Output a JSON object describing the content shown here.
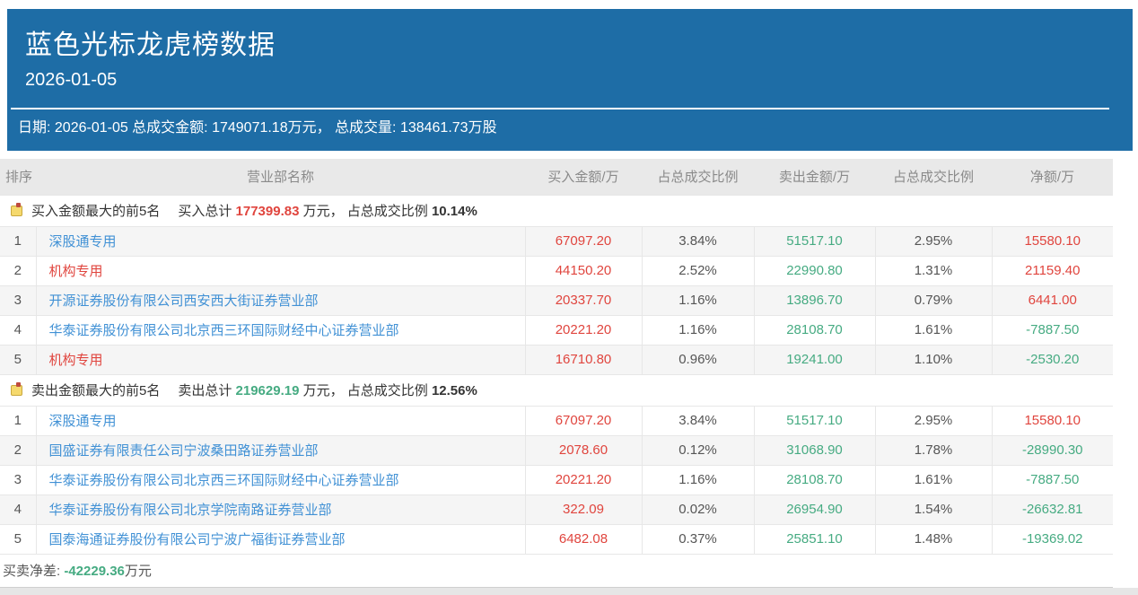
{
  "colors": {
    "header_bg": "#1e6da6",
    "link_blue": "#4191d5",
    "buy_red": "#e0453e",
    "sell_green": "#46ab82"
  },
  "header": {
    "title": "蓝色光标龙虎榜数据",
    "date": "2026-01-05",
    "summary": "日期: 2026-01-05 总成交金额: 1749071.18万元，  总成交量: 138461.73万股"
  },
  "table": {
    "columns": [
      "排序",
      "营业部名称",
      "买入金额/万",
      "占总成交比例",
      "卖出金额/万",
      "占总成交比例",
      "净额/万"
    ],
    "sections": [
      {
        "kind": "buy",
        "label": "买入金额最大的前5名",
        "total_prefix": "买入总计",
        "total": "177399.83",
        "total_unit": "万元，",
        "ratio_label": "占总成交比例",
        "ratio": "10.14%",
        "rows": [
          {
            "rank": "1",
            "name": "深股通专用",
            "highlight": false,
            "buy": "67097.20",
            "buy_pct": "3.84%",
            "sell": "51517.10",
            "sell_pct": "2.95%",
            "net": "15580.10"
          },
          {
            "rank": "2",
            "name": "机构专用",
            "highlight": true,
            "buy": "44150.20",
            "buy_pct": "2.52%",
            "sell": "22990.80",
            "sell_pct": "1.31%",
            "net": "21159.40"
          },
          {
            "rank": "3",
            "name": "开源证券股份有限公司西安西大街证券营业部",
            "highlight": false,
            "buy": "20337.70",
            "buy_pct": "1.16%",
            "sell": "13896.70",
            "sell_pct": "0.79%",
            "net": "6441.00"
          },
          {
            "rank": "4",
            "name": "华泰证券股份有限公司北京西三环国际财经中心证券营业部",
            "highlight": false,
            "buy": "20221.20",
            "buy_pct": "1.16%",
            "sell": "28108.70",
            "sell_pct": "1.61%",
            "net": "-7887.50"
          },
          {
            "rank": "5",
            "name": "机构专用",
            "highlight": true,
            "buy": "16710.80",
            "buy_pct": "0.96%",
            "sell": "19241.00",
            "sell_pct": "1.10%",
            "net": "-2530.20"
          }
        ]
      },
      {
        "kind": "sell",
        "label": "卖出金额最大的前5名",
        "total_prefix": "卖出总计",
        "total": "219629.19",
        "total_unit": "万元，",
        "ratio_label": "占总成交比例",
        "ratio": "12.56%",
        "rows": [
          {
            "rank": "1",
            "name": "深股通专用",
            "highlight": false,
            "buy": "67097.20",
            "buy_pct": "3.84%",
            "sell": "51517.10",
            "sell_pct": "2.95%",
            "net": "15580.10"
          },
          {
            "rank": "2",
            "name": "国盛证券有限责任公司宁波桑田路证券营业部",
            "highlight": false,
            "buy": "2078.60",
            "buy_pct": "0.12%",
            "sell": "31068.90",
            "sell_pct": "1.78%",
            "net": "-28990.30"
          },
          {
            "rank": "3",
            "name": "华泰证券股份有限公司北京西三环国际财经中心证券营业部",
            "highlight": false,
            "buy": "20221.20",
            "buy_pct": "1.16%",
            "sell": "28108.70",
            "sell_pct": "1.61%",
            "net": "-7887.50"
          },
          {
            "rank": "4",
            "name": "华泰证券股份有限公司北京学院南路证券营业部",
            "highlight": false,
            "buy": "322.09",
            "buy_pct": "0.02%",
            "sell": "26954.90",
            "sell_pct": "1.54%",
            "net": "-26632.81"
          },
          {
            "rank": "5",
            "name": "国泰海通证券股份有限公司宁波广福街证券营业部",
            "highlight": false,
            "buy": "6482.08",
            "buy_pct": "0.37%",
            "sell": "25851.10",
            "sell_pct": "1.48%",
            "net": "-19369.02"
          }
        ]
      }
    ]
  },
  "footer": {
    "label": "买卖净差: ",
    "value": "-42229.36",
    "unit": "万元"
  }
}
